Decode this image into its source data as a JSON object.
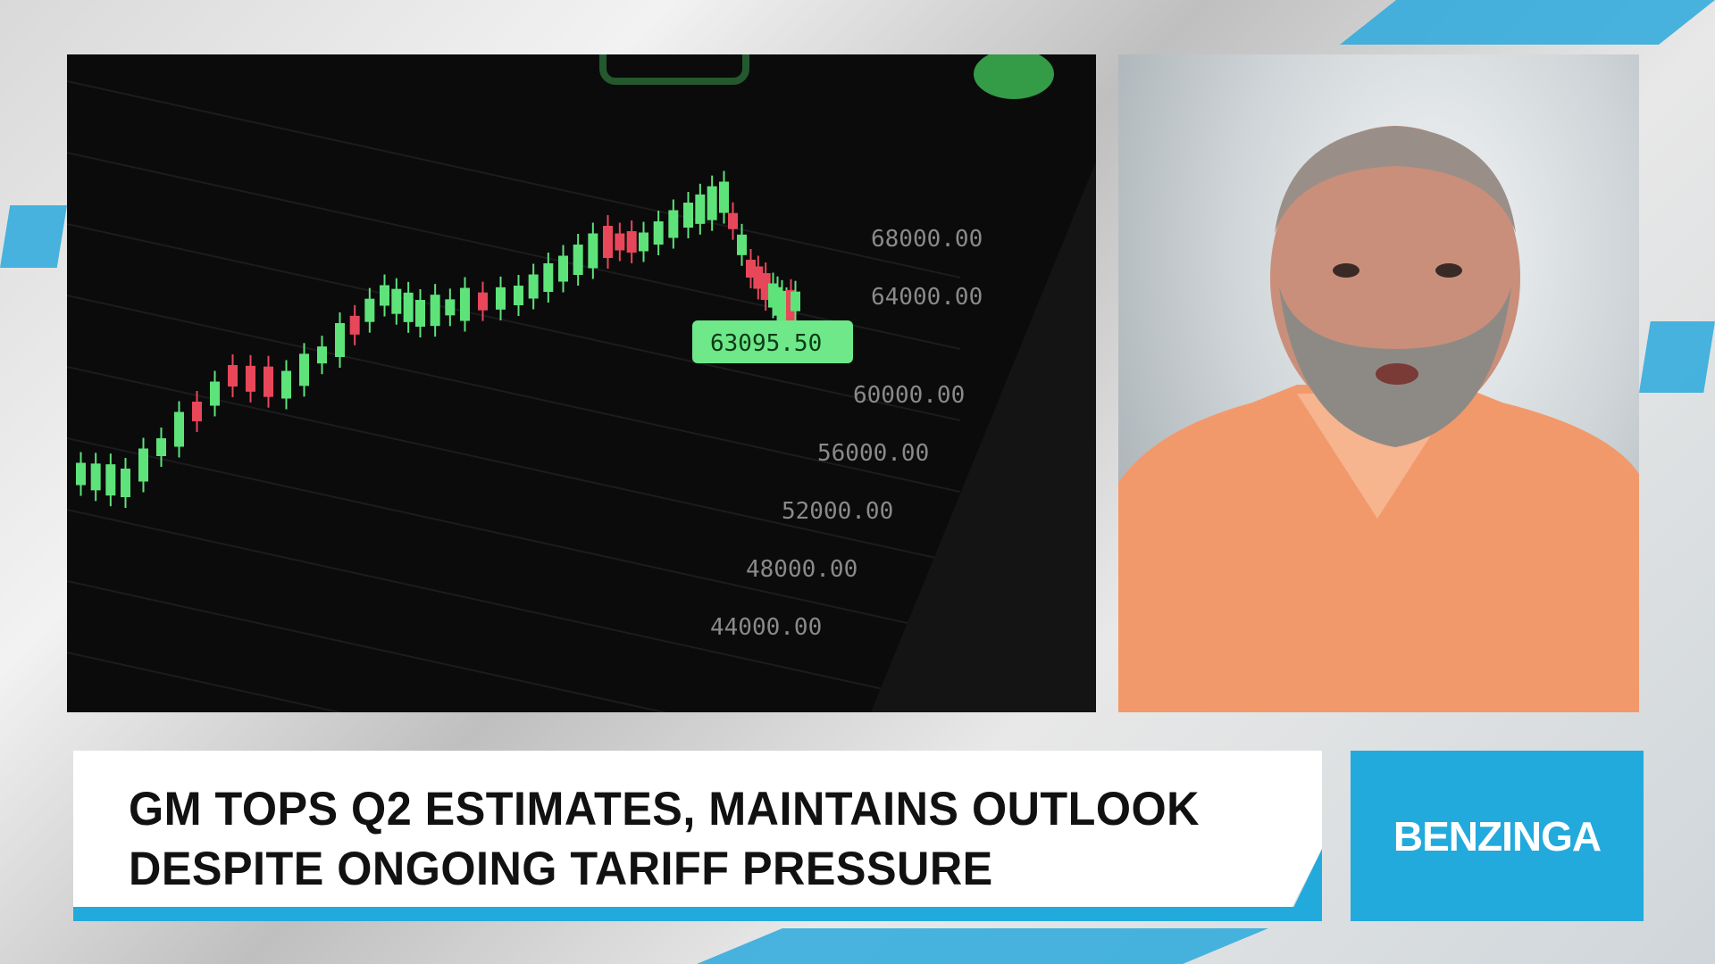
{
  "video_frame": {
    "chart_image": {
      "price_labels": [
        "68000.00",
        "64000.00",
        "60000.00",
        "56000.00",
        "52000.00",
        "48000.00",
        "44000.00"
      ],
      "current_price": "63095.50",
      "colors": {
        "up": "#5ee37a",
        "down": "#e8475a",
        "background": "#0b0b0c"
      }
    },
    "host_image": {
      "description_icon": "presenter-photo",
      "shirt_color": "#f2996b"
    },
    "lower_third": {
      "headline_line1": "GM TOPS Q2 ESTIMATES, MAINTAINS OUTLOOK",
      "headline_line2": "DESPITE ONGOING TARIFF PRESSURE",
      "accent_color": "#22aadc"
    },
    "brand": {
      "logo_text": "BENZINGA"
    }
  }
}
